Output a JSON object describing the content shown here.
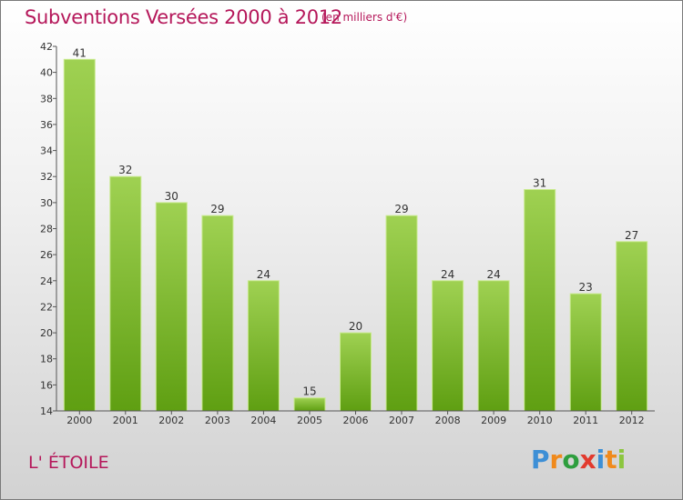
{
  "header": {
    "title": "Subventions Versées 2000 à 2012",
    "subtitle": "(en milliers d'€)"
  },
  "footer": {
    "commune": "L' ÉTOILE",
    "logo_text": "Proxiti"
  },
  "colors": {
    "accent": "#b5175a",
    "bar_light": "#9fd152",
    "bar_dark": "#5f9f12"
  },
  "chart_data": {
    "type": "bar",
    "categories": [
      "2000",
      "2001",
      "2002",
      "2003",
      "2004",
      "2005",
      "2006",
      "2007",
      "2008",
      "2009",
      "2010",
      "2011",
      "2012"
    ],
    "values": [
      41,
      32,
      30,
      29,
      24,
      15,
      20,
      29,
      24,
      24,
      31,
      23,
      27
    ],
    "title": "Subventions Versées 2000 à 2012",
    "ylim": [
      14,
      42
    ],
    "yticks": [
      14,
      16,
      18,
      20,
      22,
      24,
      26,
      28,
      30,
      32,
      34,
      36,
      38,
      40,
      42
    ],
    "grid": false,
    "legend": "none"
  }
}
